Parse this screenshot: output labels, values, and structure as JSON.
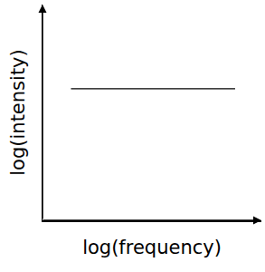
{
  "chart_data": {
    "type": "line",
    "xlabel": "log(frequency)",
    "ylabel": "log(intensity)",
    "x": [
      0.13,
      0.88
    ],
    "values": [
      0.61,
      0.61
    ],
    "color": "#000000",
    "xlim": [
      0,
      1
    ],
    "ylim": [
      0,
      1
    ],
    "xticks": [],
    "yticks": [],
    "grid": false,
    "tick_labels": false
  }
}
